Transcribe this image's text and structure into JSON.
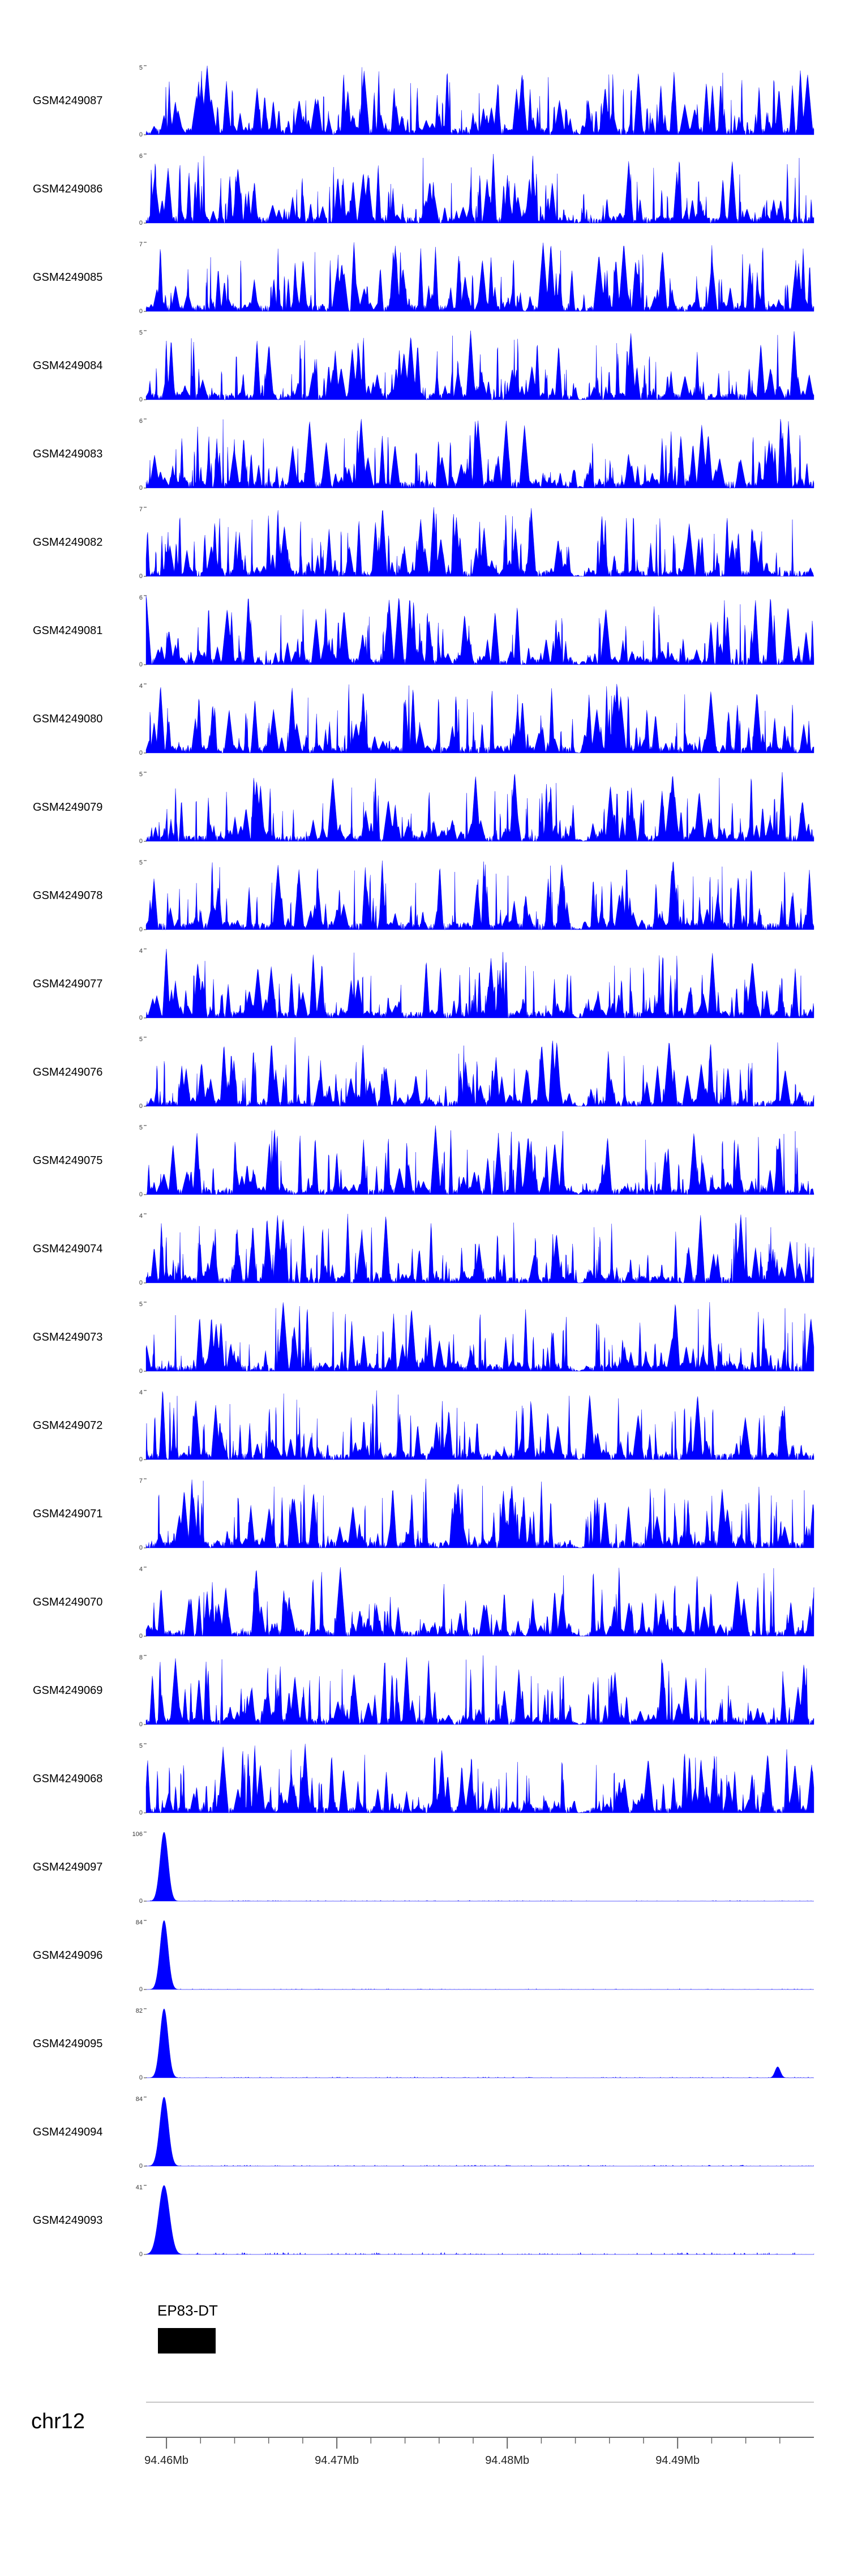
{
  "figure": {
    "background": "#ffffff",
    "signal_color": "#0000ff",
    "axis_text_color": "#333333"
  },
  "chart_data": {
    "type": "area",
    "title": "",
    "legend": "none",
    "grid": false,
    "tracks": [
      {
        "label": "GSM4249087",
        "ymin": 0,
        "ymax": 5,
        "profile": "dense",
        "seed": 4249087,
        "gaps": [
          [
            0.2,
            0.214
          ],
          [
            0.636,
            0.662
          ]
        ]
      },
      {
        "label": "GSM4249086",
        "ymin": 0,
        "ymax": 6,
        "profile": "dense",
        "seed": 4249086,
        "gaps": [
          [
            0.634,
            0.66
          ]
        ]
      },
      {
        "label": "GSM4249085",
        "ymin": 0,
        "ymax": 7,
        "profile": "dense",
        "seed": 4249085,
        "gaps": [
          [
            0.56,
            0.574
          ],
          [
            0.634,
            0.664
          ]
        ]
      },
      {
        "label": "GSM4249084",
        "ymin": 0,
        "ymax": 5,
        "profile": "dense",
        "seed": 4249084,
        "gaps": [
          [
            0.636,
            0.664
          ]
        ]
      },
      {
        "label": "GSM4249083",
        "ymin": 0,
        "ymax": 6,
        "profile": "dense",
        "seed": 4249083,
        "gaps": [
          [
            0.634,
            0.658
          ]
        ]
      },
      {
        "label": "GSM4249082",
        "ymin": 0,
        "ymax": 7,
        "profile": "dense",
        "seed": 4249082,
        "gaps": [
          [
            0.628,
            0.67
          ]
        ]
      },
      {
        "label": "GSM4249081",
        "ymin": 0,
        "ymax": 6,
        "profile": "dense",
        "seed": 4249081,
        "gaps": [
          [
            0.636,
            0.66
          ]
        ]
      },
      {
        "label": "GSM4249080",
        "ymin": 0,
        "ymax": 4,
        "profile": "dense",
        "seed": 4249080,
        "gaps": [
          [
            0.634,
            0.662
          ]
        ]
      },
      {
        "label": "GSM4249079",
        "ymin": 0,
        "ymax": 5,
        "profile": "dense",
        "seed": 4249079,
        "gaps": [
          [
            0.64,
            0.668
          ]
        ]
      },
      {
        "label": "GSM4249078",
        "ymin": 0,
        "ymax": 5,
        "profile": "dense",
        "seed": 4249078,
        "gaps": [
          [
            0.636,
            0.666
          ]
        ]
      },
      {
        "label": "GSM4249077",
        "ymin": 0,
        "ymax": 4,
        "profile": "dense",
        "seed": 4249077,
        "gaps": [
          [
            0.634,
            0.66
          ]
        ]
      },
      {
        "label": "GSM4249076",
        "ymin": 0,
        "ymax": 5,
        "profile": "dense",
        "seed": 4249076,
        "gaps": [
          [
            0.628,
            0.674
          ]
        ]
      },
      {
        "label": "GSM4249075",
        "ymin": 0,
        "ymax": 5,
        "profile": "dense",
        "seed": 4249075,
        "gaps": [
          [
            0.634,
            0.66
          ]
        ]
      },
      {
        "label": "GSM4249074",
        "ymin": 0,
        "ymax": 4,
        "profile": "dense",
        "seed": 4249074,
        "gaps": [
          [
            0.636,
            0.662
          ]
        ]
      },
      {
        "label": "GSM4249073",
        "ymin": 0,
        "ymax": 5,
        "profile": "dense",
        "seed": 4249073,
        "gaps": [
          [
            0.634,
            0.662
          ]
        ]
      },
      {
        "label": "GSM4249072",
        "ymin": 0,
        "ymax": 4,
        "profile": "dense",
        "seed": 4249072,
        "gaps": [
          [
            0.636,
            0.66
          ]
        ]
      },
      {
        "label": "GSM4249071",
        "ymin": 0,
        "ymax": 7,
        "profile": "dense",
        "seed": 4249071,
        "gaps": [
          [
            0.634,
            0.664
          ]
        ]
      },
      {
        "label": "GSM4249070",
        "ymin": 0,
        "ymax": 4,
        "profile": "dense",
        "seed": 4249070,
        "gaps": [
          [
            0.56,
            0.576
          ],
          [
            0.634,
            0.668
          ]
        ]
      },
      {
        "label": "GSM4249069",
        "ymin": 0,
        "ymax": 8,
        "profile": "dense",
        "seed": 4249069,
        "gaps": [
          [
            0.636,
            0.66
          ]
        ]
      },
      {
        "label": "GSM4249068",
        "ymin": 0,
        "ymax": 5,
        "profile": "dense",
        "seed": 4249068,
        "gaps": [
          [
            0.634,
            0.662
          ]
        ]
      },
      {
        "label": "GSM4249097",
        "ymin": 0,
        "ymax": 106,
        "profile": "single_peak",
        "seed": 4249097,
        "peak_pos": 0.027,
        "peak_width": 0.006,
        "noise": 0.012,
        "extra_peaks": []
      },
      {
        "label": "GSM4249096",
        "ymin": 0,
        "ymax": 84,
        "profile": "single_peak",
        "seed": 4249096,
        "peak_pos": 0.027,
        "peak_width": 0.006,
        "noise": 0.012,
        "extra_peaks": []
      },
      {
        "label": "GSM4249095",
        "ymin": 0,
        "ymax": 82,
        "profile": "single_peak",
        "seed": 4249095,
        "peak_pos": 0.027,
        "peak_width": 0.006,
        "noise": 0.015,
        "extra_peaks": [
          {
            "pos": 0.945,
            "height": 0.16,
            "width": 0.004
          }
        ]
      },
      {
        "label": "GSM4249094",
        "ymin": 0,
        "ymax": 84,
        "profile": "single_peak",
        "seed": 4249094,
        "peak_pos": 0.027,
        "peak_width": 0.0065,
        "noise": 0.018,
        "extra_peaks": []
      },
      {
        "label": "GSM4249093",
        "ymin": 0,
        "ymax": 41,
        "profile": "single_peak",
        "seed": 4249093,
        "peak_pos": 0.027,
        "peak_width": 0.008,
        "noise": 0.03,
        "extra_peaks": []
      }
    ],
    "gene_track": {
      "label": "EP83-DT",
      "start_mb": 94.4595,
      "end_mb": 94.4629,
      "color": "#000000"
    },
    "genome_axis": {
      "chromosome": "chr12",
      "range_mb": [
        94.4588,
        94.498
      ],
      "minor_tick_step_mb": 0.002,
      "major_ticks": [
        {
          "mb": 94.46,
          "label": "94.46Mb"
        },
        {
          "mb": 94.47,
          "label": "94.47Mb"
        },
        {
          "mb": 94.48,
          "label": "94.48Mb"
        },
        {
          "mb": 94.49,
          "label": "94.49Mb"
        }
      ]
    }
  }
}
